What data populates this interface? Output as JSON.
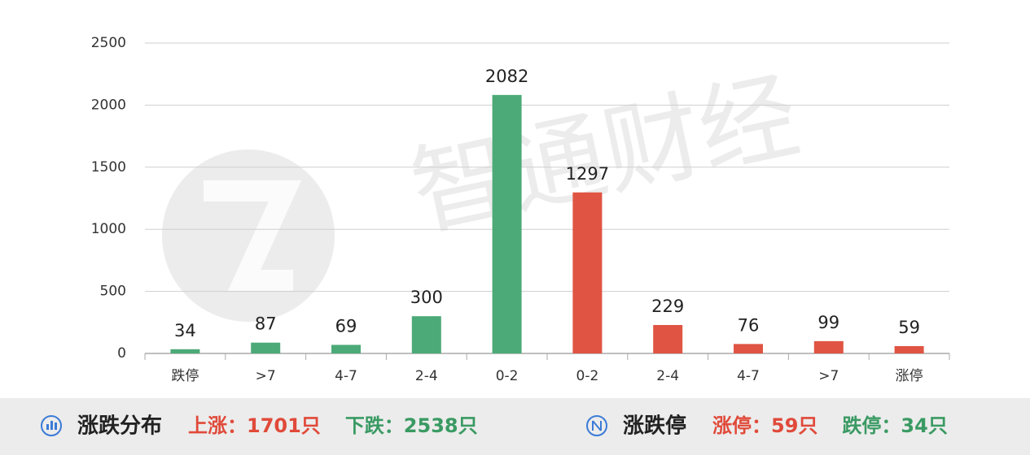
{
  "chart_data": {
    "type": "bar",
    "watermark": "智通财经",
    "categories": [
      "跌停",
      ">7",
      "4-7",
      "2-4",
      "0-2",
      "0-2",
      "2-4",
      "4-7",
      ">7",
      "涨停"
    ],
    "values": [
      34,
      87,
      69,
      300,
      2082,
      1297,
      229,
      76,
      99,
      59
    ],
    "colors": [
      "#4caa78",
      "#4caa78",
      "#4caa78",
      "#4caa78",
      "#4caa78",
      "#e05443",
      "#e05443",
      "#e05443",
      "#e05443",
      "#e05443"
    ],
    "ylim": [
      0,
      2500
    ],
    "yticks": [
      0,
      500,
      1000,
      1500,
      2000,
      2500
    ],
    "grid": true
  },
  "footer": {
    "sections": [
      {
        "title": "涨跌分布",
        "items": [
          {
            "text": "上涨：1701只",
            "color": "#e04a3a"
          },
          {
            "text": "下跌：2538只",
            "color": "#3a9a63"
          }
        ]
      },
      {
        "title": "涨跌停",
        "items": [
          {
            "text": "涨停：59只",
            "color": "#e04a3a"
          },
          {
            "text": "跌停：34只",
            "color": "#3a9a63"
          }
        ]
      }
    ]
  }
}
